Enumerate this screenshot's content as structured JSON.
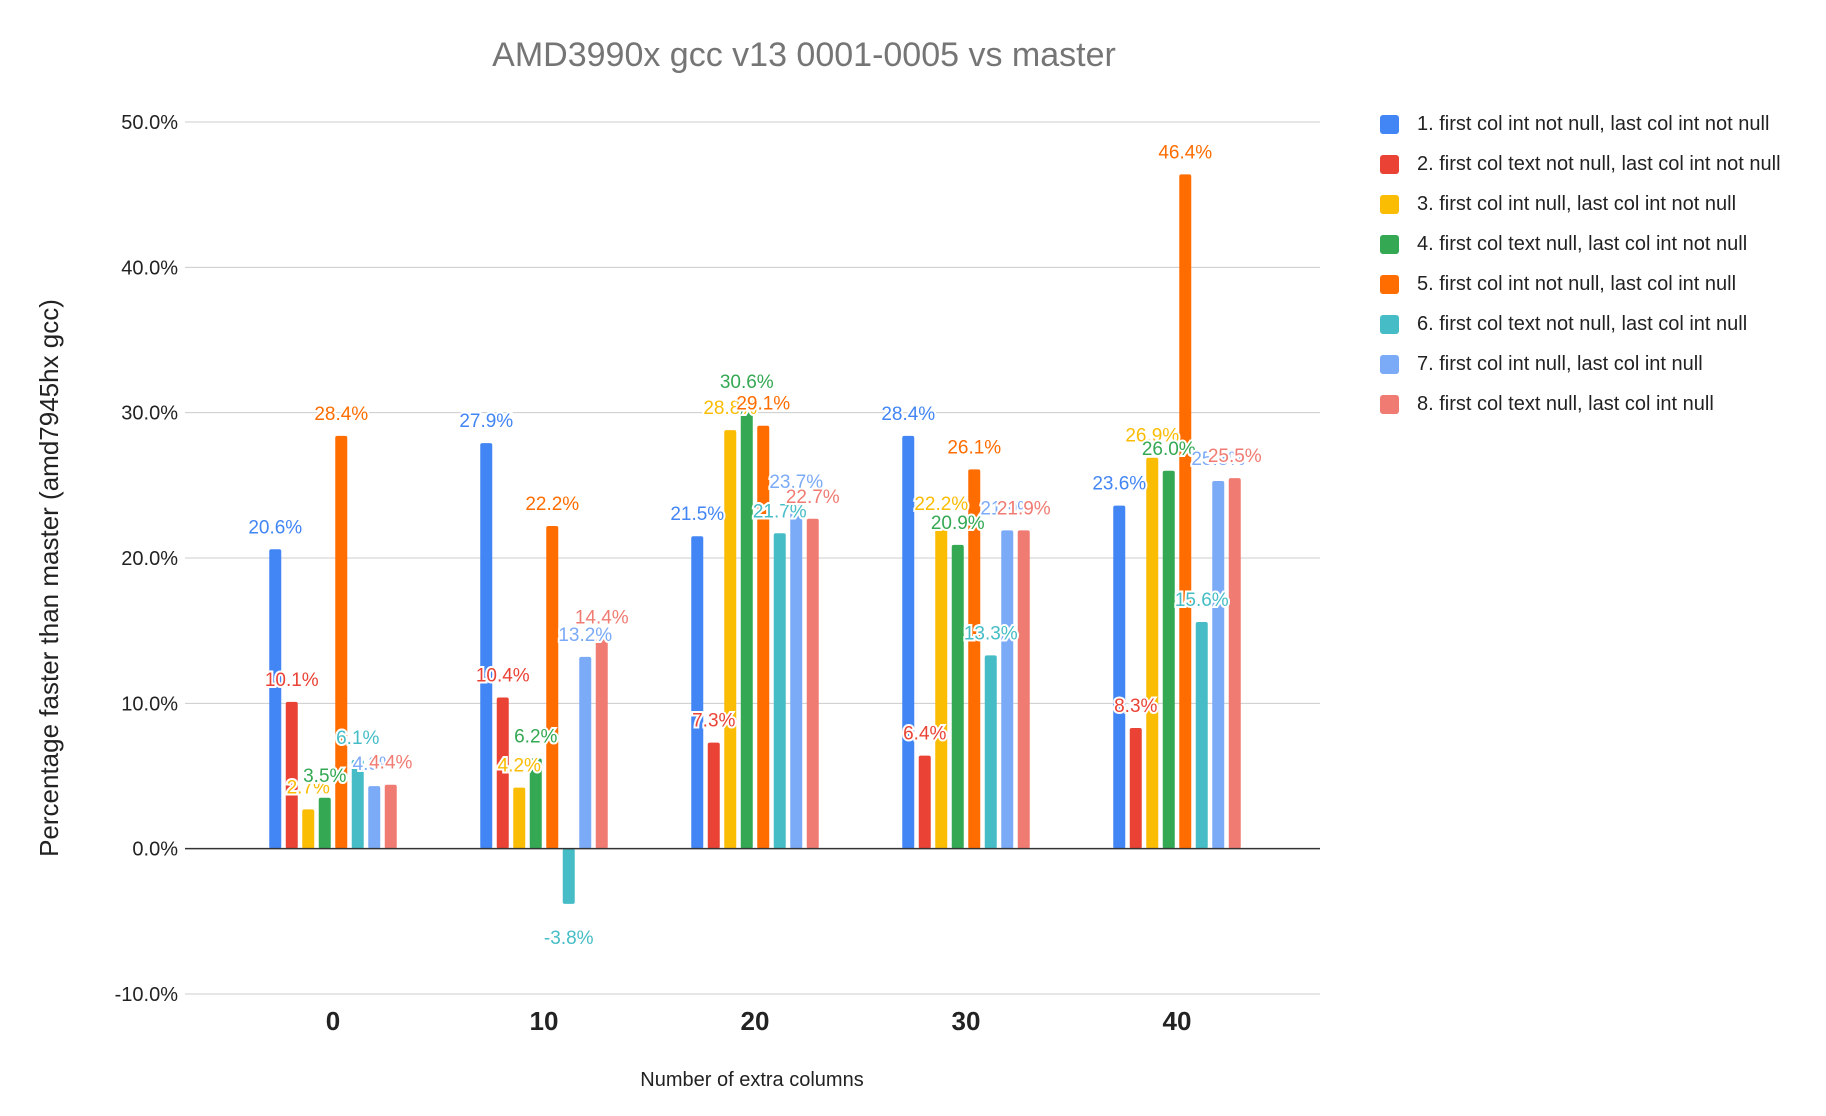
{
  "chart_data": {
    "type": "bar",
    "title": "AMD3990x gcc v13 0001-0005 vs master",
    "xlabel": "Number of extra columns",
    "ylabel": "Percentage faster than master (amd7945hx gcc)",
    "categories": [
      "0",
      "10",
      "20",
      "30",
      "40"
    ],
    "ylim": [
      -10,
      50
    ],
    "yticks": [
      -10,
      0,
      10,
      20,
      30,
      40,
      50
    ],
    "ytick_labels": [
      "-10.0%",
      "0.0%",
      "10.0%",
      "20.0%",
      "30.0%",
      "40.0%",
      "50.0%"
    ],
    "grid": true,
    "legend_position": "right",
    "series": [
      {
        "name": "1. first col int not null, last col int not null",
        "color": "#4285F4",
        "values": [
          20.6,
          27.9,
          21.5,
          28.4,
          23.6
        ],
        "labels": [
          "20.6%",
          "27.9%",
          "21.5%",
          "28.4%",
          "23.6%"
        ]
      },
      {
        "name": "2. first col text not null, last col int not null",
        "color": "#EA4335",
        "values": [
          10.1,
          10.4,
          7.3,
          6.4,
          8.3
        ],
        "labels": [
          "10.1%",
          "10.4%",
          "7.3%",
          "6.4%",
          "8.3%"
        ]
      },
      {
        "name": "3. first col int null, last col int not null",
        "color": "#FBBC04",
        "values": [
          2.7,
          4.2,
          28.8,
          22.2,
          26.9
        ],
        "labels": [
          "2.7%",
          "4.2%",
          "28.8%",
          "22.2%",
          "26.9%"
        ]
      },
      {
        "name": "4. first col text null, last col int not null",
        "color": "#34A853",
        "values": [
          3.5,
          6.2,
          30.6,
          20.9,
          26.0
        ],
        "labels": [
          "3.5%",
          "6.2%",
          "30.6%",
          "20.9%",
          "26.0%"
        ]
      },
      {
        "name": "5. first col int not null, last col int null",
        "color": "#FF6D01",
        "values": [
          28.4,
          22.2,
          29.1,
          26.1,
          46.4
        ],
        "labels": [
          "28.4%",
          "22.2%",
          "29.1%",
          "26.1%",
          "46.4%"
        ]
      },
      {
        "name": "6. first col text not null, last col int null",
        "color": "#46BDC6",
        "values": [
          6.1,
          -3.8,
          21.7,
          13.3,
          15.6
        ],
        "labels": [
          "6.1%",
          "-3.8%",
          "21.7%",
          "13.3%",
          "15.6%"
        ]
      },
      {
        "name": "7. first col int null, last col int null",
        "color": "#7BAAF7",
        "values": [
          4.3,
          13.2,
          23.7,
          21.9,
          25.3
        ],
        "labels": [
          "4.3%",
          "13.2%",
          "23.7%",
          "21.9%",
          "25.3%"
        ]
      },
      {
        "name": "8. first col text null, last col int null",
        "color": "#F07B72",
        "values": [
          4.4,
          14.4,
          22.7,
          21.9,
          25.5
        ],
        "labels": [
          "4.4%",
          "14.4%",
          "22.7%",
          "21.9%",
          "25.5%"
        ]
      }
    ]
  }
}
